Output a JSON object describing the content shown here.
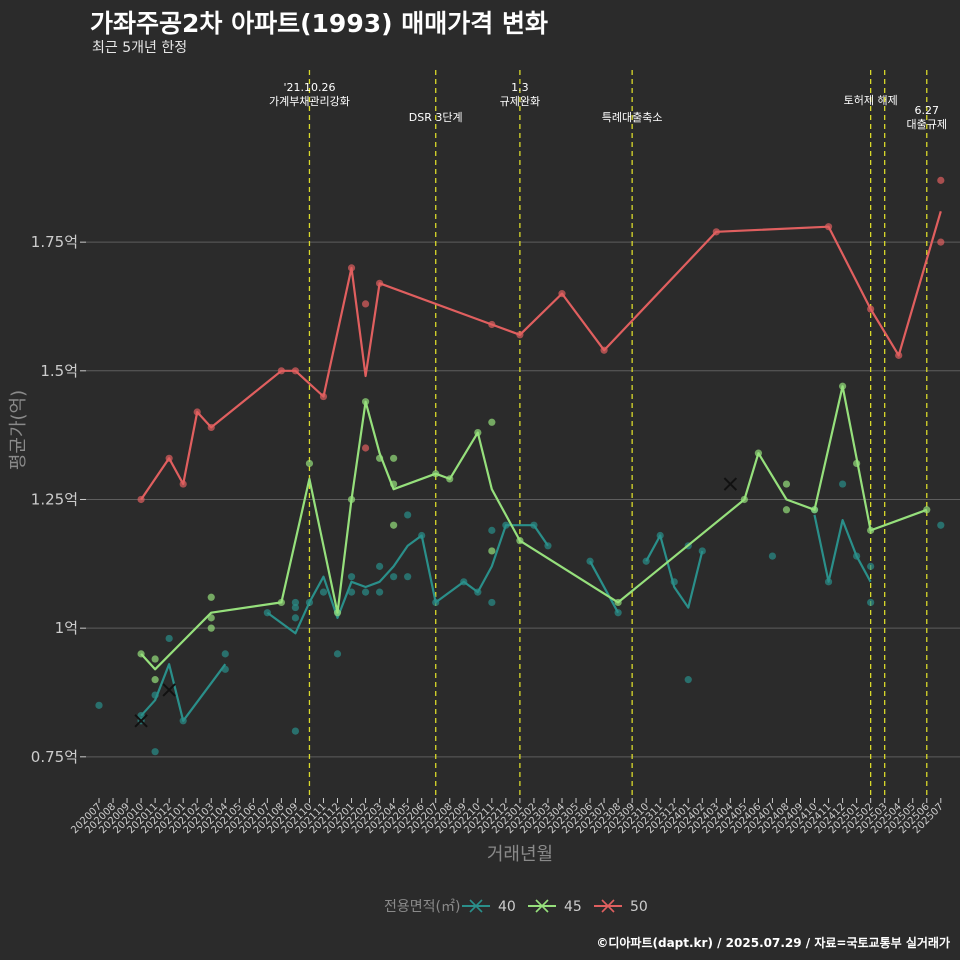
{
  "header": {
    "title": "가좌주공2차 아파트(1993) 매매가격 변화",
    "subtitle": "최근 5개년 한정"
  },
  "footer": {
    "caption": "©디아파트(dapt.kr) / 2025.07.29 / 자료=국토교통부 실거래가"
  },
  "colors": {
    "background": "#2b2b2b",
    "grid": "#5e5e5e",
    "text": "#cccccc",
    "event_line": "#d9d92b",
    "s40": "#2a8f8a",
    "s45": "#96e07c",
    "s50": "#e05f5f"
  },
  "chart_data": {
    "type": "line",
    "xlabel": "거래년월",
    "ylabel": "평균가(억)",
    "ylim": [
      0.67,
      2.1
    ],
    "grid": true,
    "legend_position": "bottom",
    "legend_title": "전용면적(㎡)",
    "categories": [
      "202007",
      "202008",
      "202009",
      "202010",
      "202011",
      "202012",
      "202101",
      "202102",
      "202103",
      "202104",
      "202105",
      "202106",
      "202107",
      "202108",
      "202109",
      "202110",
      "202111",
      "202112",
      "202201",
      "202202",
      "202203",
      "202204",
      "202205",
      "202206",
      "202207",
      "202208",
      "202209",
      "202210",
      "202211",
      "202212",
      "202301",
      "202302",
      "202303",
      "202304",
      "202305",
      "202306",
      "202307",
      "202308",
      "202309",
      "202310",
      "202311",
      "202312",
      "202401",
      "202402",
      "202403",
      "202404",
      "202405",
      "202406",
      "202407",
      "202408",
      "202409",
      "202410",
      "202411",
      "202412",
      "202501",
      "202502",
      "202503",
      "202504",
      "202505",
      "202506",
      "202507"
    ],
    "yticks": [
      {
        "value": 0.75,
        "label": "0.75억"
      },
      {
        "value": 1.0,
        "label": "1억"
      },
      {
        "value": 1.25,
        "label": "1.25억"
      },
      {
        "value": 1.5,
        "label": "1.5억"
      },
      {
        "value": 1.75,
        "label": "1.75억"
      }
    ],
    "events": [
      {
        "x": 15,
        "lines": [
          "'21.10.26",
          "가계부채관리강화"
        ],
        "row": 0
      },
      {
        "x": 24,
        "lines": [
          "DSR 3단계"
        ],
        "row": 2
      },
      {
        "x": 30,
        "lines": [
          "1.3",
          "규제완화"
        ],
        "row": 0
      },
      {
        "x": 38,
        "lines": [
          "특례대출축소"
        ],
        "row": 2
      },
      {
        "x": 55,
        "lines": [
          "토허제 해제"
        ],
        "row": 1
      },
      {
        "x": 56,
        "lines": [],
        "row": 1
      },
      {
        "x": 59,
        "lines": [
          "6.27",
          "대출규제"
        ],
        "row": 3
      }
    ],
    "series": [
      {
        "name": "40",
        "color": "#2a8f8a",
        "line": [
          [
            3,
            0.83
          ],
          [
            4,
            0.86
          ],
          [
            5,
            0.93
          ],
          [
            6,
            0.82
          ],
          [
            9,
            0.93
          ],
          null,
          [
            12,
            1.03
          ],
          [
            14,
            0.99
          ],
          [
            15,
            1.05
          ],
          [
            16,
            1.1
          ],
          [
            17,
            1.02
          ],
          [
            18,
            1.09
          ],
          [
            19,
            1.08
          ],
          [
            20,
            1.09
          ],
          [
            21,
            1.12
          ],
          [
            22,
            1.16
          ],
          [
            23,
            1.18
          ],
          [
            24,
            1.05
          ],
          [
            26,
            1.09
          ],
          [
            27,
            1.07
          ],
          [
            28,
            1.12
          ],
          [
            29,
            1.2
          ],
          [
            30,
            1.2
          ],
          [
            31,
            1.2
          ],
          [
            32,
            1.16
          ],
          null,
          [
            35,
            1.13
          ],
          [
            37,
            1.03
          ],
          null,
          [
            39,
            1.13
          ],
          [
            40,
            1.18
          ],
          [
            41,
            1.08
          ],
          [
            42,
            1.04
          ],
          [
            43,
            1.15
          ],
          null,
          [
            51,
            1.22
          ],
          [
            52,
            1.09
          ],
          [
            53,
            1.21
          ],
          [
            54,
            1.14
          ],
          [
            55,
            1.09
          ]
        ],
        "points": [
          [
            0,
            0.85
          ],
          [
            3,
            0.82
          ],
          [
            3,
            0.83
          ],
          [
            4,
            0.76
          ],
          [
            4,
            0.87
          ],
          [
            5,
            0.98
          ],
          [
            6,
            0.82
          ],
          [
            9,
            0.92
          ],
          [
            9,
            0.95
          ],
          [
            12,
            1.03
          ],
          [
            14,
            0.8
          ],
          [
            14,
            1.02
          ],
          [
            14,
            1.04
          ],
          [
            14,
            1.05
          ],
          [
            15,
            1.05
          ],
          [
            16,
            1.07
          ],
          [
            17,
            0.95
          ],
          [
            18,
            1.07
          ],
          [
            18,
            1.1
          ],
          [
            19,
            1.07
          ],
          [
            20,
            1.07
          ],
          [
            20,
            1.12
          ],
          [
            21,
            1.1
          ],
          [
            22,
            1.1
          ],
          [
            22,
            1.22
          ],
          [
            23,
            1.18
          ],
          [
            24,
            1.05
          ],
          [
            26,
            1.09
          ],
          [
            27,
            1.07
          ],
          [
            28,
            1.05
          ],
          [
            28,
            1.19
          ],
          [
            29,
            1.2
          ],
          [
            31,
            1.2
          ],
          [
            32,
            1.16
          ],
          [
            35,
            1.13
          ],
          [
            37,
            1.03
          ],
          [
            39,
            1.13
          ],
          [
            40,
            1.18
          ],
          [
            41,
            1.09
          ],
          [
            42,
            0.9
          ],
          [
            42,
            1.16
          ],
          [
            43,
            1.15
          ],
          [
            48,
            1.14
          ],
          [
            51,
            1.23
          ],
          [
            52,
            1.09
          ],
          [
            53,
            1.28
          ],
          [
            54,
            1.14
          ],
          [
            55,
            1.05
          ],
          [
            55,
            1.12
          ],
          [
            60,
            1.2
          ]
        ],
        "crosses": [
          [
            3,
            0.82
          ],
          [
            5,
            0.88
          ],
          [
            45,
            1.28
          ]
        ]
      },
      {
        "name": "45",
        "color": "#96e07c",
        "line": [
          [
            3,
            0.95
          ],
          [
            4,
            0.92
          ],
          [
            8,
            1.03
          ],
          [
            13,
            1.05
          ],
          [
            15,
            1.29
          ],
          [
            17,
            1.03
          ],
          [
            18,
            1.25
          ],
          [
            19,
            1.44
          ],
          [
            20,
            1.34
          ],
          [
            21,
            1.27
          ],
          [
            24,
            1.3
          ],
          [
            25,
            1.29
          ],
          [
            27,
            1.38
          ],
          [
            28,
            1.27
          ],
          [
            30,
            1.17
          ],
          [
            37,
            1.05
          ],
          [
            46,
            1.25
          ],
          [
            47,
            1.34
          ],
          [
            49,
            1.25
          ],
          [
            51,
            1.23
          ],
          [
            53,
            1.47
          ],
          [
            55,
            1.19
          ],
          [
            59,
            1.23
          ]
        ],
        "points": [
          [
            3,
            0.95
          ],
          [
            4,
            0.9
          ],
          [
            4,
            0.94
          ],
          [
            8,
            1.0
          ],
          [
            8,
            1.02
          ],
          [
            8,
            1.06
          ],
          [
            13,
            1.05
          ],
          [
            15,
            1.32
          ],
          [
            17,
            1.03
          ],
          [
            18,
            1.25
          ],
          [
            19,
            1.44
          ],
          [
            20,
            1.33
          ],
          [
            21,
            1.2
          ],
          [
            21,
            1.28
          ],
          [
            21,
            1.33
          ],
          [
            24,
            1.3
          ],
          [
            25,
            1.29
          ],
          [
            27,
            1.38
          ],
          [
            28,
            1.15
          ],
          [
            28,
            1.4
          ],
          [
            30,
            1.17
          ],
          [
            37,
            1.05
          ],
          [
            46,
            1.25
          ],
          [
            47,
            1.34
          ],
          [
            49,
            1.23
          ],
          [
            49,
            1.28
          ],
          [
            51,
            1.23
          ],
          [
            53,
            1.47
          ],
          [
            54,
            1.32
          ],
          [
            55,
            1.19
          ],
          [
            59,
            1.23
          ]
        ],
        "crosses": []
      },
      {
        "name": "50",
        "color": "#e05f5f",
        "line": [
          [
            3,
            1.25
          ],
          [
            5,
            1.33
          ],
          [
            6,
            1.28
          ],
          [
            7,
            1.42
          ],
          [
            8,
            1.39
          ],
          [
            13,
            1.5
          ],
          [
            14,
            1.5
          ],
          [
            16,
            1.45
          ],
          [
            18,
            1.7
          ],
          [
            19,
            1.49
          ],
          [
            20,
            1.67
          ],
          [
            28,
            1.59
          ],
          [
            30,
            1.57
          ],
          [
            33,
            1.65
          ],
          [
            36,
            1.54
          ],
          [
            44,
            1.77
          ],
          [
            52,
            1.78
          ],
          [
            55,
            1.62
          ],
          [
            57,
            1.53
          ],
          [
            60,
            1.81
          ]
        ],
        "points": [
          [
            3,
            1.25
          ],
          [
            5,
            1.33
          ],
          [
            6,
            1.28
          ],
          [
            7,
            1.42
          ],
          [
            8,
            1.39
          ],
          [
            13,
            1.5
          ],
          [
            14,
            1.5
          ],
          [
            16,
            1.45
          ],
          [
            18,
            1.7
          ],
          [
            19,
            1.63
          ],
          [
            19,
            1.35
          ],
          [
            20,
            1.67
          ],
          [
            28,
            1.59
          ],
          [
            30,
            1.57
          ],
          [
            33,
            1.65
          ],
          [
            36,
            1.54
          ],
          [
            44,
            1.77
          ],
          [
            52,
            1.78
          ],
          [
            55,
            1.62
          ],
          [
            57,
            1.53
          ],
          [
            60,
            1.75
          ],
          [
            60,
            1.87
          ]
        ],
        "crosses": []
      }
    ]
  }
}
